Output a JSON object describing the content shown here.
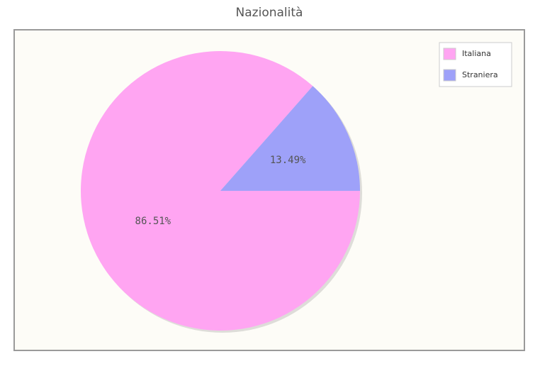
{
  "chart_data": {
    "type": "pie",
    "title": "Nazionalità",
    "categories": [
      "Italiana",
      "Straniera"
    ],
    "values": [
      86.51,
      13.49
    ],
    "value_labels": [
      "86.51%",
      "13.49%"
    ],
    "colors": [
      "#ffa5f2",
      "#9ea1f9"
    ],
    "legend": "top-right"
  }
}
